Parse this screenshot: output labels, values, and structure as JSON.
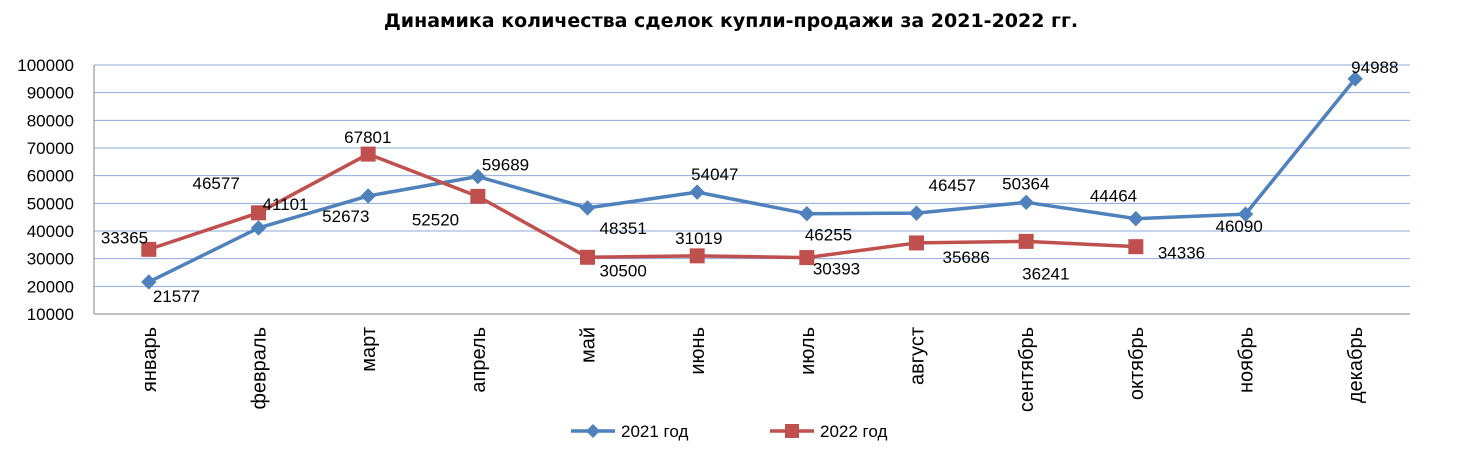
{
  "chart_data": {
    "type": "line",
    "title": "Динамика количества сделок купли-продажи за 2021-2022 гг.",
    "xlabel": "",
    "ylabel": "",
    "ylim": [
      10000,
      100000
    ],
    "yticks": [
      "10000",
      "20000",
      "30000",
      "40000",
      "50000",
      "60000",
      "70000",
      "80000",
      "90000",
      "100000"
    ],
    "grid": true,
    "legend_position": "bottom",
    "categories": [
      "январь",
      "февраль",
      "март",
      "апрель",
      "май",
      "июнь",
      "июль",
      "август",
      "сентябрь",
      "октябрь",
      "ноябрь",
      "декабрь"
    ],
    "series": [
      {
        "name": "2021 год",
        "color": "#4F81BD",
        "marker": "diamond",
        "values": [
          21577,
          41101,
          52673,
          59689,
          48351,
          54047,
          46255,
          46457,
          50364,
          44464,
          46090,
          94988
        ],
        "labels": [
          "21577",
          "41101",
          "52673",
          "59689",
          "48351",
          "54047",
          "46255",
          "46457",
          "50364",
          "44464",
          "46090",
          "94988"
        ]
      },
      {
        "name": "2022 год",
        "color": "#C0504D",
        "marker": "square",
        "values": [
          33365,
          46577,
          67801,
          52520,
          30500,
          31019,
          30393,
          35686,
          36241,
          34336,
          null,
          null
        ],
        "labels": [
          "33365",
          "46577",
          "67801",
          "52520",
          "30500",
          "31019",
          "30393",
          "35686",
          "36241",
          "34336",
          null,
          null
        ]
      }
    ]
  }
}
